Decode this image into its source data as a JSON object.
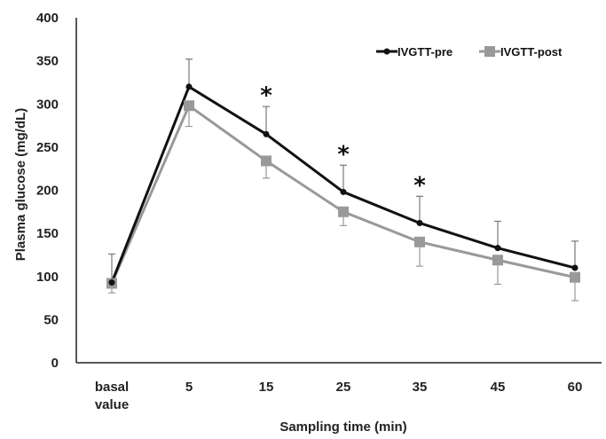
{
  "chart_data": {
    "type": "line",
    "title": "",
    "xlabel": "Sampling time (min)",
    "ylabel": "Plasma glucose (mg/dL)",
    "ylim": [
      0,
      400
    ],
    "yticks": [
      0,
      50,
      100,
      150,
      200,
      250,
      300,
      350,
      400
    ],
    "categories": [
      "basal value",
      "5",
      "15",
      "25",
      "35",
      "45",
      "60"
    ],
    "category_labels": [
      [
        "basal",
        "value"
      ],
      [
        "5"
      ],
      [
        "15"
      ],
      [
        "25"
      ],
      [
        "35"
      ],
      [
        "45"
      ],
      [
        "60"
      ]
    ],
    "grid": false,
    "legend_position": "top-right",
    "series": [
      {
        "name": "IVGTT-pre",
        "color": "#111111",
        "marker": "circle",
        "values": [
          93,
          320,
          265,
          198,
          162,
          133,
          110
        ],
        "error": [
          33,
          32,
          32,
          31,
          31,
          31,
          31
        ]
      },
      {
        "name": "IVGTT-post",
        "color": "#999999",
        "marker": "square",
        "values": [
          92,
          298,
          234,
          175,
          140,
          119,
          99
        ],
        "error": [
          11,
          24,
          20,
          16,
          28,
          28,
          27
        ]
      }
    ],
    "annotations": [
      {
        "text": "*",
        "category": "15"
      },
      {
        "text": "*",
        "category": "25"
      },
      {
        "text": "*",
        "category": "35"
      }
    ]
  }
}
